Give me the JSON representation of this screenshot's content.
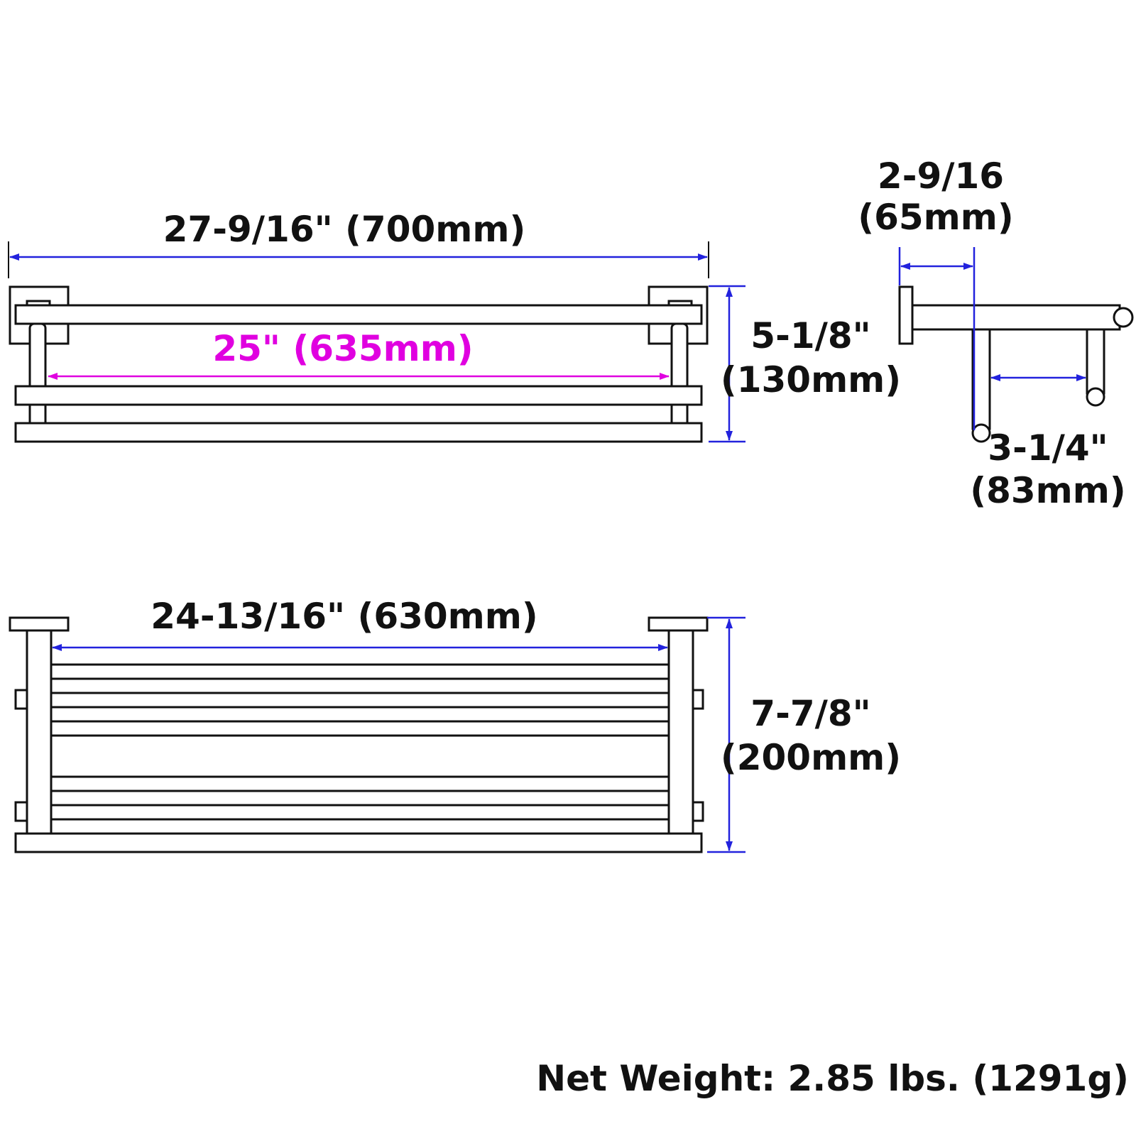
{
  "colors": {
    "outline": "#111111",
    "dimension_line": "#2222dd",
    "inner_dimension": "#e000e0",
    "background": "#ffffff"
  },
  "front_view": {
    "overall_width": "27-9/16\" (700mm)",
    "inner_width": "25\" (635mm)",
    "height_in": "5-1/8\"",
    "height_mm": "(130mm)"
  },
  "side_view": {
    "depth_top_in": "2-9/16",
    "depth_top_mm": "(65mm)",
    "rail_gap_in": "3-1/4\"",
    "rail_gap_mm": "(83mm)"
  },
  "top_view": {
    "inner_width": "24-13/16\" (630mm)",
    "depth_in": "7-7/8\"",
    "depth_mm": "(200mm)"
  },
  "net_weight": "Net Weight: 2.85 lbs. (1291g)"
}
